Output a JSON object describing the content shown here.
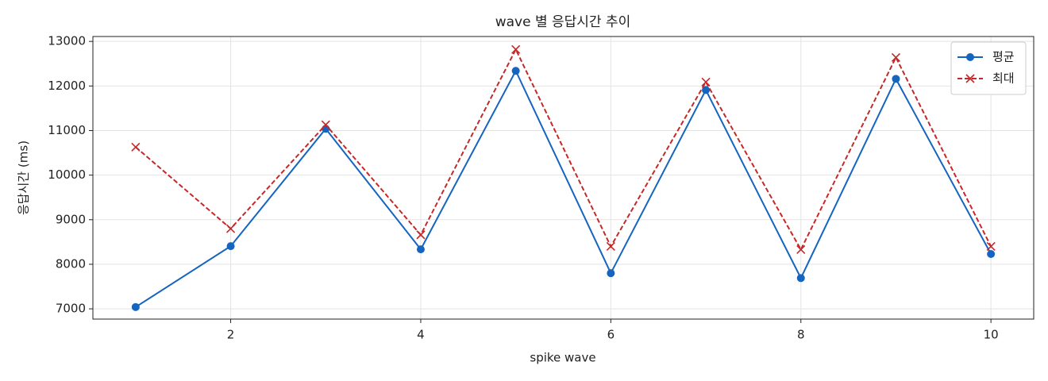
{
  "chart_data": {
    "type": "line",
    "title": "wave 별 응답시간 추이",
    "x_label": "spike wave",
    "y_label": "응답시간 (ms)",
    "x": [
      1,
      2,
      3,
      4,
      5,
      6,
      7,
      8,
      9,
      10
    ],
    "series": [
      {
        "name": "평균",
        "color": "#1565c0",
        "marker": "circle",
        "linestyle": "solid",
        "values": [
          7040,
          8406,
          11040,
          8335,
          12340,
          7800,
          11910,
          7690,
          12160,
          8230
        ]
      },
      {
        "name": "최대",
        "color": "#c62828",
        "marker": "x",
        "linestyle": "dashed",
        "values": [
          10630,
          8800,
          11130,
          8660,
          12820,
          8400,
          12090,
          8330,
          12640,
          8400
        ]
      }
    ],
    "xlim": [
      0.55,
      10.45
    ],
    "xticks": [
      2,
      4,
      6,
      8,
      10
    ],
    "ylim": [
      6770,
      13110
    ],
    "yticks": [
      7000,
      8000,
      9000,
      10000,
      11000,
      12000,
      13000
    ],
    "grid": true,
    "legend": "upper right"
  }
}
